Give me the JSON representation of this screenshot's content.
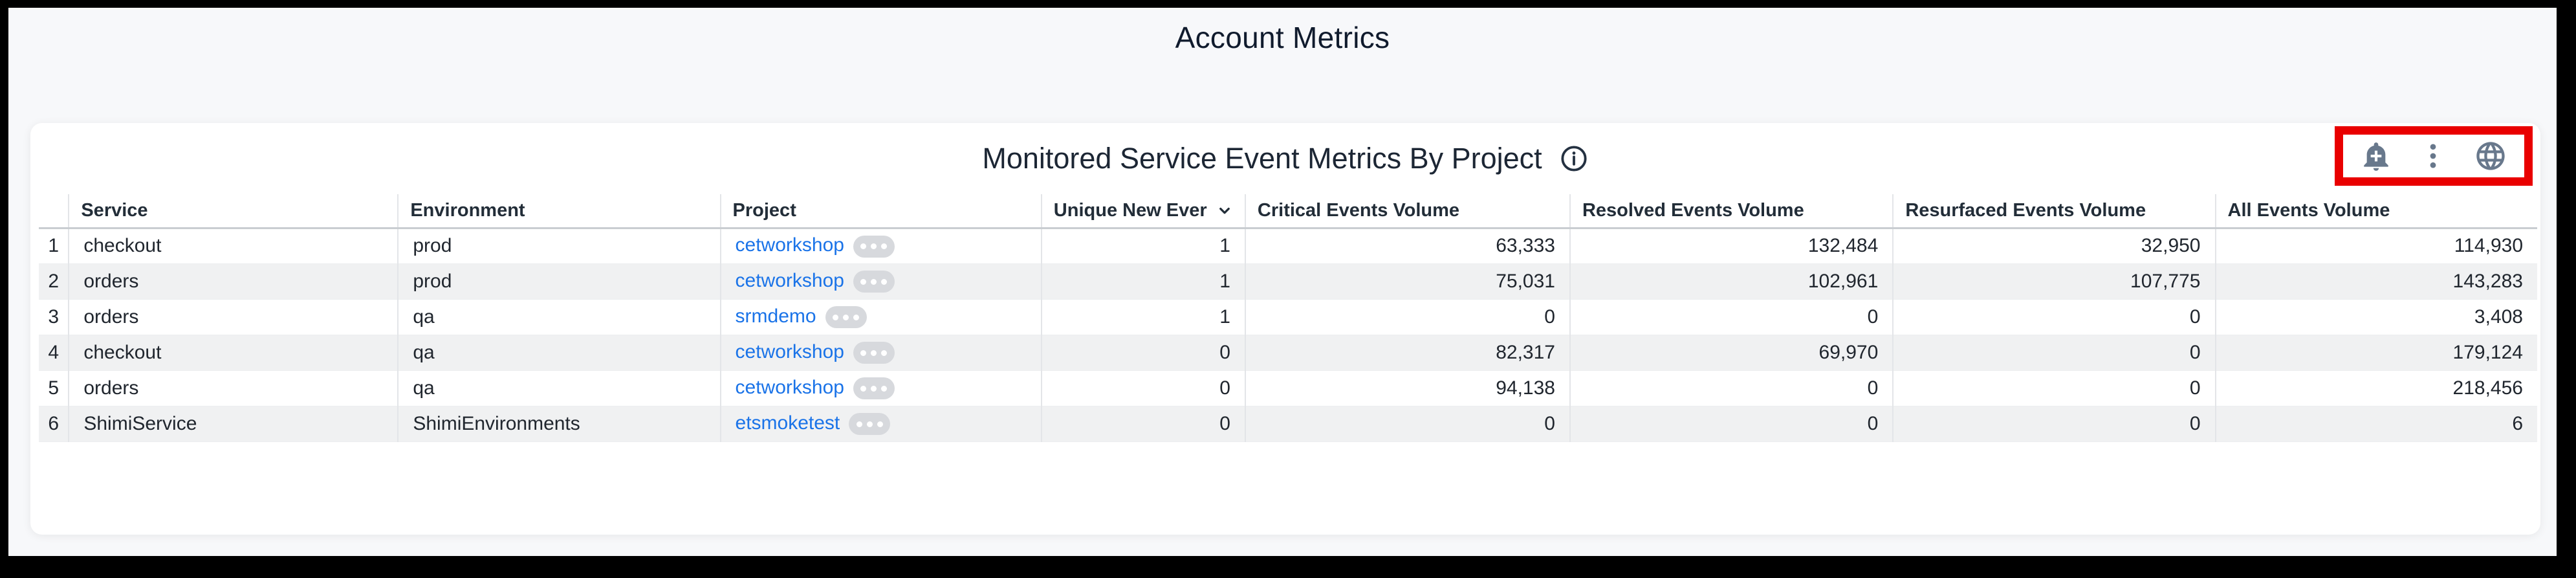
{
  "page": {
    "title": "Account Metrics"
  },
  "panel": {
    "title": "Monitored Service Event Metrics By Project",
    "info_icon": "info-icon",
    "actions": [
      {
        "name": "add-alert-icon"
      },
      {
        "name": "kebab-menu-icon"
      },
      {
        "name": "globe-icon"
      }
    ],
    "highlight_color": "#e90000"
  },
  "table": {
    "columns": [
      {
        "label": "",
        "key": "num"
      },
      {
        "label": "Service",
        "key": "service"
      },
      {
        "label": "Environment",
        "key": "environment"
      },
      {
        "label": "Project",
        "key": "project"
      },
      {
        "label": "Unique New Ever",
        "key": "unique_new_ever",
        "sorted": "desc"
      },
      {
        "label": "Critical Events Volume",
        "key": "critical"
      },
      {
        "label": "Resolved Events Volume",
        "key": "resolved"
      },
      {
        "label": "Resurfaced Events Volume",
        "key": "resurfaced"
      },
      {
        "label": "All Events Volume",
        "key": "all"
      }
    ],
    "rows": [
      {
        "num": "1",
        "service": "checkout",
        "environment": "prod",
        "project": "cetworkshop",
        "unique_new_ever": "1",
        "critical": "63,333",
        "resolved": "132,484",
        "resurfaced": "32,950",
        "all": "114,930"
      },
      {
        "num": "2",
        "service": "orders",
        "environment": "prod",
        "project": "cetworkshop",
        "unique_new_ever": "1",
        "critical": "75,031",
        "resolved": "102,961",
        "resurfaced": "107,775",
        "all": "143,283"
      },
      {
        "num": "3",
        "service": "orders",
        "environment": "qa",
        "project": "srmdemo",
        "unique_new_ever": "1",
        "critical": "0",
        "resolved": "0",
        "resurfaced": "0",
        "all": "3,408"
      },
      {
        "num": "4",
        "service": "checkout",
        "environment": "qa",
        "project": "cetworkshop",
        "unique_new_ever": "0",
        "critical": "82,317",
        "resolved": "69,970",
        "resurfaced": "0",
        "all": "179,124"
      },
      {
        "num": "5",
        "service": "orders",
        "environment": "qa",
        "project": "cetworkshop",
        "unique_new_ever": "0",
        "critical": "94,138",
        "resolved": "0",
        "resurfaced": "0",
        "all": "218,456"
      },
      {
        "num": "6",
        "service": "ShimiService",
        "environment": "ShimiEnvironments",
        "project": "etsmoketest",
        "unique_new_ever": "0",
        "critical": "0",
        "resolved": "0",
        "resurfaced": "0",
        "all": "6"
      }
    ],
    "pill_label": "more-options-dots"
  },
  "colors": {
    "link": "#1a73e8",
    "icon_gray": "#68788c",
    "highlight_red": "#e90000",
    "zebra": "#f0f1f2",
    "title_navy": "#101b2d"
  }
}
